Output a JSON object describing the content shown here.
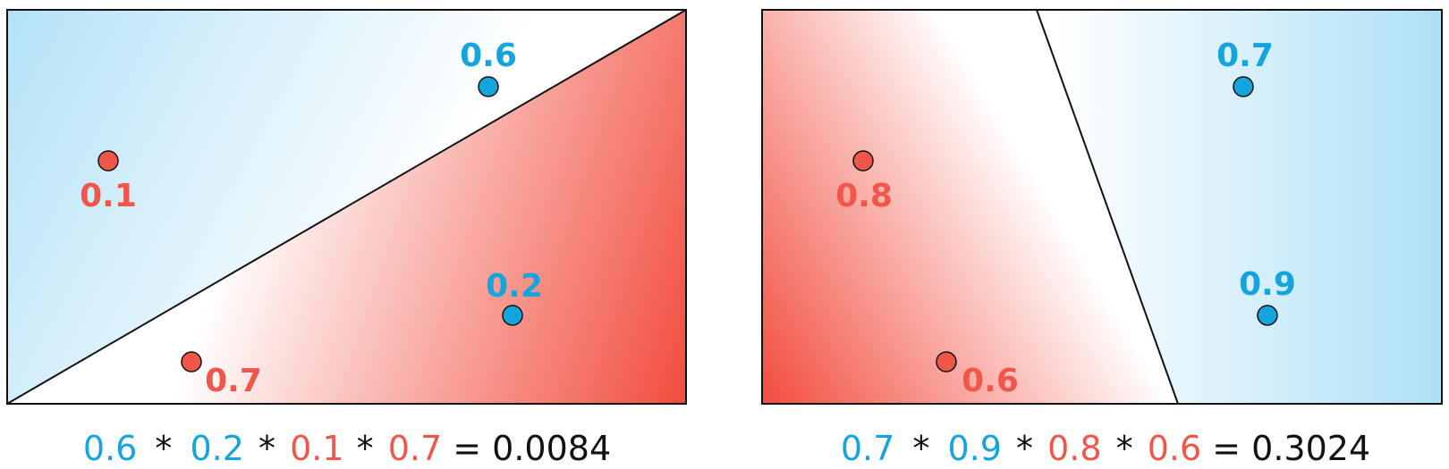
{
  "colors": {
    "blue": "#14a5de",
    "red": "#f0574a",
    "black": "#111111",
    "light_blue": "#aee0f6",
    "light_red": "#f24c3d"
  },
  "panels": [
    {
      "points": [
        {
          "label": "0.6",
          "class": "blue"
        },
        {
          "label": "0.1",
          "class": "red"
        },
        {
          "label": "0.2",
          "class": "blue"
        },
        {
          "label": "0.7",
          "class": "red"
        }
      ],
      "equation": {
        "terms": [
          {
            "text": "0.6",
            "class": "blue"
          },
          {
            "text": "*",
            "class": "black"
          },
          {
            "text": "0.2",
            "class": "blue"
          },
          {
            "text": "*",
            "class": "black"
          },
          {
            "text": "0.1",
            "class": "red"
          },
          {
            "text": "*",
            "class": "black"
          },
          {
            "text": "0.7",
            "class": "red"
          },
          {
            "text": "= 0.0084",
            "class": "black"
          }
        ]
      }
    },
    {
      "points": [
        {
          "label": "0.7",
          "class": "blue"
        },
        {
          "label": "0.8",
          "class": "red"
        },
        {
          "label": "0.9",
          "class": "blue"
        },
        {
          "label": "0.6",
          "class": "red"
        }
      ],
      "equation": {
        "terms": [
          {
            "text": "0.7",
            "class": "blue"
          },
          {
            "text": "*",
            "class": "black"
          },
          {
            "text": "0.9",
            "class": "blue"
          },
          {
            "text": "*",
            "class": "black"
          },
          {
            "text": "0.8",
            "class": "red"
          },
          {
            "text": "*",
            "class": "black"
          },
          {
            "text": "0.6",
            "class": "red"
          },
          {
            "text": "= 0.3024",
            "class": "black"
          }
        ]
      }
    }
  ]
}
